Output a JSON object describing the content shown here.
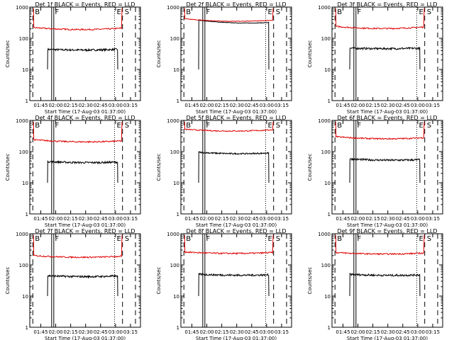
{
  "colors": {
    "events": "#000000",
    "lld": "#e00000",
    "axes": "#000000",
    "background": "#ffffff"
  },
  "chart_data": [
    {
      "type": "line",
      "title": "Det 1f BLACK = Events, RED = LLD",
      "xlabel": "Start Time (17-Aug-03 01:37:00)",
      "ylabel": "Counts/sec",
      "yscale": "log",
      "ylim": [
        1,
        1000
      ],
      "xlim_minutes": [
        -3,
        108
      ],
      "tick_minutes": [
        8,
        23,
        38,
        53,
        68,
        83,
        98
      ],
      "tick_labels": [
        "01:45",
        "02:00",
        "02:15",
        "02:30",
        "02:45",
        "03:00",
        "03:15"
      ],
      "yticks": [
        1,
        10,
        100,
        1000
      ],
      "ytick_labels": [
        "1",
        "10",
        "100",
        "1000"
      ],
      "markers": [
        {
          "label": "B",
          "minute": 0,
          "style": "dashed"
        },
        {
          "label": "F",
          "minute": 20,
          "style": "double-solid"
        },
        {
          "label": "E",
          "minute": 82,
          "style": "dotted"
        },
        {
          "label": "S",
          "minute": 90,
          "style": "dashed"
        },
        {
          "label": "",
          "minute": 103,
          "style": "dashed"
        }
      ],
      "series": [
        {
          "name": "Events",
          "color": "#000000",
          "start": 15,
          "end": 85,
          "start_value": 44,
          "end_value": 44,
          "mid_value": 40,
          "noise": 0.07
        },
        {
          "name": "LLD",
          "color": "#e00000",
          "start": 1,
          "end": 89,
          "start_value": 220,
          "end_value": 210,
          "mid_value": 170,
          "noise": 0.05
        }
      ]
    },
    {
      "type": "line",
      "title": "Det 2f BLACK = Events, RED = LLD",
      "xlabel": "Start Time (17-Aug-03 01:37:00)",
      "ylabel": "Counts/sec",
      "yscale": "log",
      "ylim": [
        1,
        1000
      ],
      "xlim_minutes": [
        -3,
        108
      ],
      "tick_minutes": [
        8,
        23,
        38,
        53,
        68,
        83,
        98
      ],
      "tick_labels": [
        "01:45",
        "02:00",
        "02:15",
        "02:30",
        "02:45",
        "03:00",
        "03:15"
      ],
      "yticks": [
        1,
        10,
        100,
        1000
      ],
      "ytick_labels": [
        "1",
        "10",
        "100",
        "1000"
      ],
      "markers": [
        {
          "label": "B",
          "minute": 0,
          "style": "dashed"
        },
        {
          "label": "F",
          "minute": 20,
          "style": "double-solid"
        },
        {
          "label": "E",
          "minute": 82,
          "style": "dotted"
        },
        {
          "label": "S",
          "minute": 90,
          "style": "dashed"
        },
        {
          "label": "",
          "minute": 103,
          "style": "dashed"
        }
      ],
      "series": [
        {
          "name": "Events",
          "color": "#000000",
          "start": 15,
          "end": 85,
          "start_value": 380,
          "end_value": 320,
          "mid_value": 280,
          "noise": 0.02
        },
        {
          "name": "LLD",
          "color": "#e00000",
          "start": 1,
          "end": 89,
          "start_value": 420,
          "end_value": 380,
          "mid_value": 310,
          "noise": 0.02
        }
      ]
    },
    {
      "type": "line",
      "title": "Det 3f BLACK = Events, RED = LLD",
      "xlabel": "Start Time (17-Aug-03 01:37:00)",
      "ylabel": "Counts/sec",
      "yscale": "log",
      "ylim": [
        1,
        1000
      ],
      "xlim_minutes": [
        -3,
        108
      ],
      "tick_minutes": [
        8,
        23,
        38,
        53,
        68,
        83,
        98
      ],
      "tick_labels": [
        "01:45",
        "02:00",
        "02:15",
        "02:30",
        "02:45",
        "03:00",
        "03:15"
      ],
      "yticks": [
        1,
        10,
        100,
        1000
      ],
      "ytick_labels": [
        "1",
        "10",
        "100",
        "1000"
      ],
      "markers": [
        {
          "label": "B",
          "minute": 0,
          "style": "dashed"
        },
        {
          "label": "F",
          "minute": 20,
          "style": "double-solid"
        },
        {
          "label": "E",
          "minute": 82,
          "style": "dotted"
        },
        {
          "label": "S",
          "minute": 90,
          "style": "dashed"
        },
        {
          "label": "",
          "minute": 103,
          "style": "dashed"
        }
      ],
      "series": [
        {
          "name": "Events",
          "color": "#000000",
          "start": 15,
          "end": 85,
          "start_value": 48,
          "end_value": 48,
          "mid_value": 45,
          "noise": 0.07
        },
        {
          "name": "LLD",
          "color": "#e00000",
          "start": 1,
          "end": 89,
          "start_value": 240,
          "end_value": 230,
          "mid_value": 180,
          "noise": 0.05
        }
      ]
    },
    {
      "type": "line",
      "title": "Det 4f BLACK = Events, RED = LLD",
      "xlabel": "Start Time (17-Aug-03 01:37:00)",
      "ylabel": "Counts/sec",
      "yscale": "log",
      "ylim": [
        1,
        1000
      ],
      "xlim_minutes": [
        -3,
        108
      ],
      "tick_minutes": [
        8,
        23,
        38,
        53,
        68,
        83,
        98
      ],
      "tick_labels": [
        "01:45",
        "02:00",
        "02:15",
        "02:30",
        "02:45",
        "03:00",
        "03:15"
      ],
      "yticks": [
        1,
        10,
        100,
        1000
      ],
      "ytick_labels": [
        "1",
        "10",
        "100",
        "1000"
      ],
      "markers": [
        {
          "label": "B",
          "minute": 0,
          "style": "dashed"
        },
        {
          "label": "F",
          "minute": 20,
          "style": "double-solid"
        },
        {
          "label": "E",
          "minute": 82,
          "style": "dotted"
        },
        {
          "label": "S",
          "minute": 90,
          "style": "dashed"
        },
        {
          "label": "",
          "minute": 103,
          "style": "dashed"
        }
      ],
      "series": [
        {
          "name": "Events",
          "color": "#000000",
          "start": 15,
          "end": 85,
          "start_value": 48,
          "end_value": 46,
          "mid_value": 42,
          "noise": 0.07
        },
        {
          "name": "LLD",
          "color": "#e00000",
          "start": 1,
          "end": 89,
          "start_value": 240,
          "end_value": 220,
          "mid_value": 185,
          "noise": 0.05
        }
      ]
    },
    {
      "type": "line",
      "title": "Det 5f BLACK = Events, RED = LLD",
      "xlabel": "Start Time (17-Aug-03 01:37:00)",
      "ylabel": "Counts/sec",
      "yscale": "log",
      "ylim": [
        1,
        1000
      ],
      "xlim_minutes": [
        -3,
        108
      ],
      "tick_minutes": [
        8,
        23,
        38,
        53,
        68,
        83,
        98
      ],
      "tick_labels": [
        "01:45",
        "02:00",
        "02:15",
        "02:30",
        "02:45",
        "03:00",
        "03:15"
      ],
      "yticks": [
        1,
        10,
        100,
        1000
      ],
      "ytick_labels": [
        "1",
        "10",
        "100",
        "1000"
      ],
      "markers": [
        {
          "label": "B",
          "minute": 0,
          "style": "dashed"
        },
        {
          "label": "F",
          "minute": 20,
          "style": "double-solid"
        },
        {
          "label": "E",
          "minute": 82,
          "style": "dotted"
        },
        {
          "label": "S",
          "minute": 90,
          "style": "dashed"
        },
        {
          "label": "",
          "minute": 103,
          "style": "dashed"
        }
      ],
      "series": [
        {
          "name": "Events",
          "color": "#000000",
          "start": 15,
          "end": 85,
          "start_value": 95,
          "end_value": 90,
          "mid_value": 80,
          "noise": 0.05
        },
        {
          "name": "LLD",
          "color": "#e00000",
          "start": 1,
          "end": 89,
          "start_value": 520,
          "end_value": 500,
          "mid_value": 410,
          "noise": 0.04
        }
      ]
    },
    {
      "type": "line",
      "title": "Det 6f BLACK = Events, RED = LLD",
      "xlabel": "Start Time (17-Aug-03 01:37:00)",
      "ylabel": "Counts/sec",
      "yscale": "log",
      "ylim": [
        1,
        1000
      ],
      "xlim_minutes": [
        -3,
        108
      ],
      "tick_minutes": [
        8,
        23,
        38,
        53,
        68,
        83,
        98
      ],
      "tick_labels": [
        "01:45",
        "02:00",
        "02:15",
        "02:30",
        "02:45",
        "03:00",
        "03:15"
      ],
      "yticks": [
        1,
        10,
        100,
        1000
      ],
      "ytick_labels": [
        "1",
        "10",
        "100",
        "1000"
      ],
      "markers": [
        {
          "label": "B",
          "minute": 0,
          "style": "dashed"
        },
        {
          "label": "F",
          "minute": 20,
          "style": "double-solid"
        },
        {
          "label": "E",
          "minute": 82,
          "style": "dotted"
        },
        {
          "label": "S",
          "minute": 90,
          "style": "dashed"
        },
        {
          "label": "",
          "minute": 103,
          "style": "dashed"
        }
      ],
      "series": [
        {
          "name": "Events",
          "color": "#000000",
          "start": 15,
          "end": 85,
          "start_value": 58,
          "end_value": 55,
          "mid_value": 50,
          "noise": 0.07
        },
        {
          "name": "LLD",
          "color": "#e00000",
          "start": 1,
          "end": 89,
          "start_value": 300,
          "end_value": 280,
          "mid_value": 230,
          "noise": 0.05
        }
      ]
    },
    {
      "type": "line",
      "title": "Det 7f BLACK = Events, RED = LLD",
      "xlabel": "Start Time (17-Aug-03 01:37:00)",
      "ylabel": "Counts/sec",
      "yscale": "log",
      "ylim": [
        1,
        1000
      ],
      "xlim_minutes": [
        -3,
        108
      ],
      "tick_minutes": [
        8,
        23,
        38,
        53,
        68,
        83,
        98
      ],
      "tick_labels": [
        "01:45",
        "02:00",
        "02:15",
        "02:30",
        "02:45",
        "03:00",
        "03:15"
      ],
      "yticks": [
        1,
        10,
        100,
        1000
      ],
      "ytick_labels": [
        "1",
        "10",
        "100",
        "1000"
      ],
      "markers": [
        {
          "label": "B",
          "minute": 0,
          "style": "dashed"
        },
        {
          "label": "F",
          "minute": 20,
          "style": "double-solid"
        },
        {
          "label": "E",
          "minute": 82,
          "style": "dotted"
        },
        {
          "label": "S",
          "minute": 90,
          "style": "dashed"
        },
        {
          "label": "",
          "minute": 103,
          "style": "dashed"
        }
      ],
      "series": [
        {
          "name": "Events",
          "color": "#000000",
          "start": 15,
          "end": 85,
          "start_value": 45,
          "end_value": 44,
          "mid_value": 40,
          "noise": 0.07
        },
        {
          "name": "LLD",
          "color": "#e00000",
          "start": 1,
          "end": 89,
          "start_value": 200,
          "end_value": 190,
          "mid_value": 160,
          "noise": 0.05
        }
      ]
    },
    {
      "type": "line",
      "title": "Det 8f BLACK = Events, RED = LLD",
      "xlabel": "Start Time (17-Aug-03 01:37:00)",
      "ylabel": "Counts/sec",
      "yscale": "log",
      "ylim": [
        1,
        1000
      ],
      "xlim_minutes": [
        -3,
        108
      ],
      "tick_minutes": [
        8,
        23,
        38,
        53,
        68,
        83,
        98
      ],
      "tick_labels": [
        "01:45",
        "02:00",
        "02:15",
        "02:30",
        "02:45",
        "03:00",
        "03:15"
      ],
      "yticks": [
        1,
        10,
        100,
        1000
      ],
      "ytick_labels": [
        "1",
        "10",
        "100",
        "1000"
      ],
      "markers": [
        {
          "label": "B",
          "minute": 0,
          "style": "dashed"
        },
        {
          "label": "F",
          "minute": 20,
          "style": "double-solid"
        },
        {
          "label": "E",
          "minute": 82,
          "style": "dotted"
        },
        {
          "label": "S",
          "minute": 90,
          "style": "dashed"
        },
        {
          "label": "",
          "minute": 103,
          "style": "dashed"
        }
      ],
      "series": [
        {
          "name": "Events",
          "color": "#000000",
          "start": 15,
          "end": 85,
          "start_value": 50,
          "end_value": 48,
          "mid_value": 45,
          "noise": 0.07
        },
        {
          "name": "LLD",
          "color": "#e00000",
          "start": 1,
          "end": 89,
          "start_value": 260,
          "end_value": 250,
          "mid_value": 215,
          "noise": 0.05
        }
      ]
    },
    {
      "type": "line",
      "title": "Det 9f BLACK = Events, RED = LLD",
      "xlabel": "Start Time (17-Aug-03 01:37:00)",
      "ylabel": "Counts/sec",
      "yscale": "log",
      "ylim": [
        1,
        1000
      ],
      "xlim_minutes": [
        -3,
        108
      ],
      "tick_minutes": [
        8,
        23,
        38,
        53,
        68,
        83,
        98
      ],
      "tick_labels": [
        "01:45",
        "02:00",
        "02:15",
        "02:30",
        "02:45",
        "03:00",
        "03:15"
      ],
      "yticks": [
        1,
        10,
        100,
        1000
      ],
      "ytick_labels": [
        "1",
        "10",
        "100",
        "1000"
      ],
      "markers": [
        {
          "label": "B",
          "minute": 0,
          "style": "dashed"
        },
        {
          "label": "F",
          "minute": 20,
          "style": "double-solid"
        },
        {
          "label": "E",
          "minute": 82,
          "style": "dotted"
        },
        {
          "label": "S",
          "minute": 90,
          "style": "dashed"
        },
        {
          "label": "",
          "minute": 103,
          "style": "dashed"
        }
      ],
      "series": [
        {
          "name": "Events",
          "color": "#000000",
          "start": 15,
          "end": 85,
          "start_value": 50,
          "end_value": 48,
          "mid_value": 44,
          "noise": 0.07
        },
        {
          "name": "LLD",
          "color": "#e00000",
          "start": 1,
          "end": 89,
          "start_value": 250,
          "end_value": 240,
          "mid_value": 205,
          "noise": 0.05
        }
      ]
    }
  ]
}
